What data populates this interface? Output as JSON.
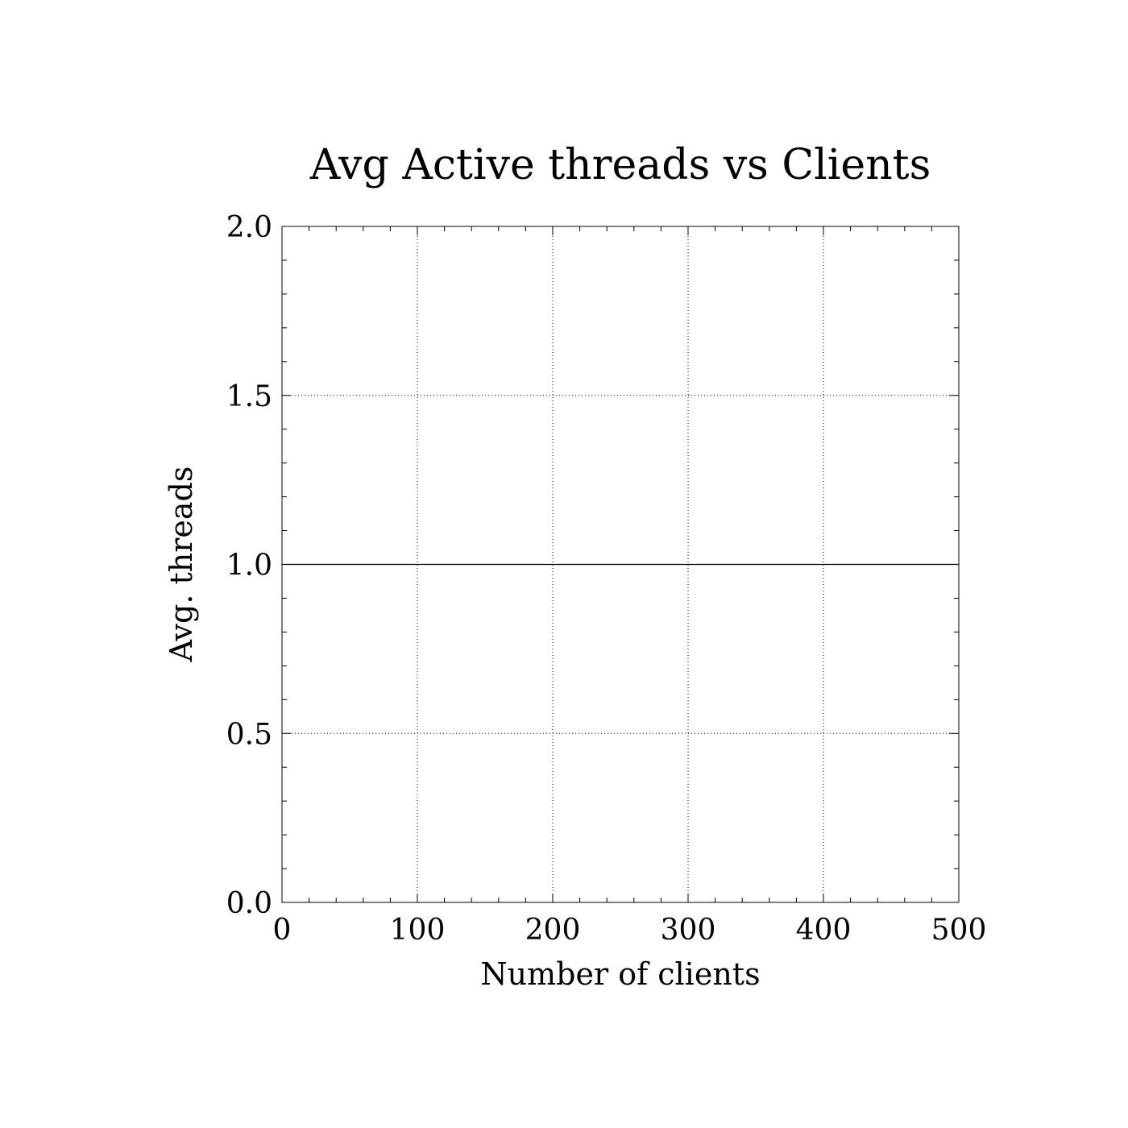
{
  "chart_data": {
    "type": "line",
    "title": "Avg Active threads vs Clients",
    "xlabel": "Number of clients",
    "ylabel": "Avg. threads",
    "xlim": [
      0,
      500
    ],
    "ylim": [
      0.0,
      2.0
    ],
    "x_ticks": [
      "0",
      "100",
      "200",
      "300",
      "400",
      "500"
    ],
    "y_ticks": [
      "0.0",
      "0.5",
      "1.0",
      "1.5",
      "2.0"
    ],
    "grid": true,
    "grid_style": "dotted",
    "series": [
      {
        "x": [
          0,
          500
        ],
        "y": [
          1.0,
          1.0
        ],
        "color": "#000000"
      }
    ]
  }
}
